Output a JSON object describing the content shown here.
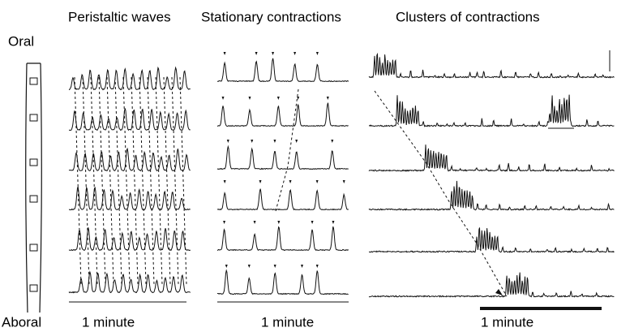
{
  "tube": {
    "top_label": "Oral",
    "bottom_label": "Aboral"
  },
  "panels": [
    {
      "title": "Peristaltic waves",
      "scale_label": "1 minute"
    },
    {
      "title": "Stationary contractions",
      "scale_label": "1 minute"
    },
    {
      "title": "Clusters of contractions",
      "scale_label": "1 minute"
    }
  ]
}
